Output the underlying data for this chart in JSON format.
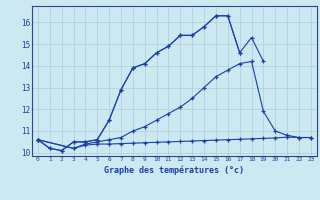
{
  "xlabel": "Graphe des températures (°c)",
  "background_color": "#cce8f0",
  "grid_color": "#aacfdc",
  "line_color": "#1a3faa",
  "spine_color": "#334488",
  "yticks": [
    10,
    11,
    12,
    13,
    14,
    15,
    16
  ],
  "xticks": [
    0,
    1,
    2,
    3,
    4,
    5,
    6,
    7,
    8,
    9,
    10,
    11,
    12,
    13,
    14,
    15,
    16,
    17,
    18,
    19,
    20,
    21,
    22,
    23
  ],
  "hours": [
    0,
    1,
    2,
    3,
    4,
    5,
    6,
    7,
    8,
    9,
    10,
    11,
    12,
    13,
    14,
    15,
    16,
    17,
    18,
    19,
    20,
    21,
    22,
    23
  ],
  "line1": [
    10.6,
    10.2,
    10.1,
    10.5,
    10.5,
    10.6,
    11.5,
    12.9,
    13.9,
    14.1,
    14.6,
    14.9,
    15.4,
    15.4,
    15.8,
    16.3,
    16.3,
    14.6,
    null,
    null,
    null,
    null,
    null,
    null
  ],
  "line2": [
    10.6,
    10.2,
    10.1,
    10.5,
    10.5,
    10.6,
    11.5,
    12.9,
    13.9,
    14.1,
    14.6,
    14.9,
    15.4,
    15.4,
    15.8,
    16.3,
    16.3,
    14.6,
    15.3,
    14.2,
    null,
    null,
    null,
    null
  ],
  "line3": [
    10.6,
    null,
    null,
    10.2,
    10.4,
    10.5,
    10.6,
    10.7,
    11.0,
    11.2,
    11.5,
    11.8,
    12.1,
    12.5,
    13.0,
    13.5,
    13.8,
    14.1,
    14.2,
    11.9,
    11.0,
    10.8,
    10.7,
    10.7
  ],
  "line4": [
    10.6,
    null,
    null,
    10.2,
    10.35,
    10.4,
    10.4,
    10.42,
    10.44,
    10.46,
    10.48,
    10.5,
    10.52,
    10.54,
    10.56,
    10.58,
    10.6,
    10.62,
    10.64,
    10.66,
    10.68,
    10.72,
    10.7,
    10.7
  ]
}
